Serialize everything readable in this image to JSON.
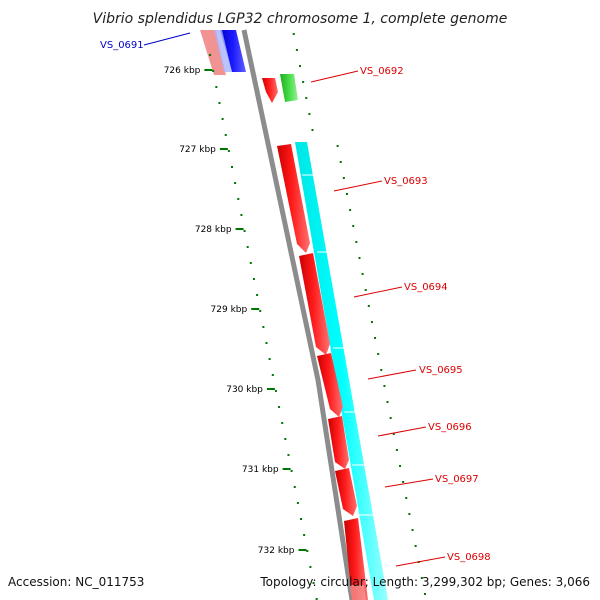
{
  "title": "Vibrio splendidus LGP32 chromosome 1, complete genome",
  "footer": {
    "accession": "Accession: NC_011753",
    "topology": "Topology: circular; Length: 3,299,302 bp; Genes: 3,066"
  },
  "colors": {
    "backbone": "#8c8c8c",
    "forward_cds": "#ff0000",
    "reverse_cds": "#0000ee",
    "rna": "#33cc33",
    "cyan_track": "#00ffff",
    "ticks": "#007700",
    "label_red": "#dd0000",
    "label_blue": "#0000cc"
  },
  "scale_ticks": [
    "726 kbp",
    "727 kbp",
    "728 kbp",
    "729 kbp",
    "730 kbp",
    "731 kbp",
    "732 kbp"
  ],
  "gene_labels": [
    {
      "name": "VS_0691",
      "color": "blue"
    },
    {
      "name": "VS_0692",
      "color": "red"
    },
    {
      "name": "VS_0693",
      "color": "red"
    },
    {
      "name": "VS_0694",
      "color": "red"
    },
    {
      "name": "VS_0695",
      "color": "red"
    },
    {
      "name": "VS_0696",
      "color": "red"
    },
    {
      "name": "VS_0697",
      "color": "red"
    },
    {
      "name": "VS_0698",
      "color": "red"
    }
  ]
}
